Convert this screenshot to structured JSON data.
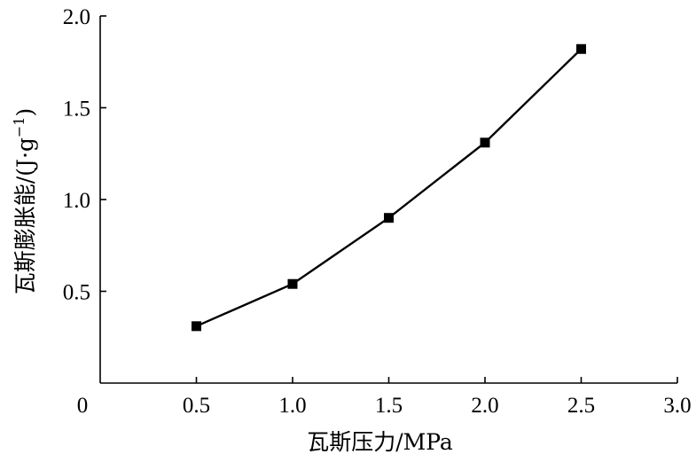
{
  "chart_data": {
    "type": "line",
    "xlabel": "瓦斯压力/MPa",
    "ylabel": "瓦斯膨胀能/(J·g",
    "ylabel_sup": "−1",
    "ylabel_close": ")",
    "xlim": [
      0,
      3.0
    ],
    "ylim": [
      0,
      2.0
    ],
    "x_ticks": [
      0,
      0.5,
      1.0,
      1.5,
      2.0,
      2.5,
      3.0
    ],
    "x_tick_labels": [
      "0",
      "0.5",
      "1.0",
      "1.5",
      "2.0",
      "2.5",
      "3.0"
    ],
    "y_ticks": [
      0.5,
      1.0,
      1.5,
      2.0
    ],
    "y_tick_labels": [
      "0.5",
      "1.0",
      "1.5",
      "2.0"
    ],
    "grid": false,
    "series": [
      {
        "x": [
          0.5,
          1.0,
          1.5,
          2.0,
          2.5
        ],
        "y": [
          0.31,
          0.54,
          0.9,
          1.31,
          1.82
        ],
        "marker": "square",
        "color": "#000000"
      }
    ]
  }
}
